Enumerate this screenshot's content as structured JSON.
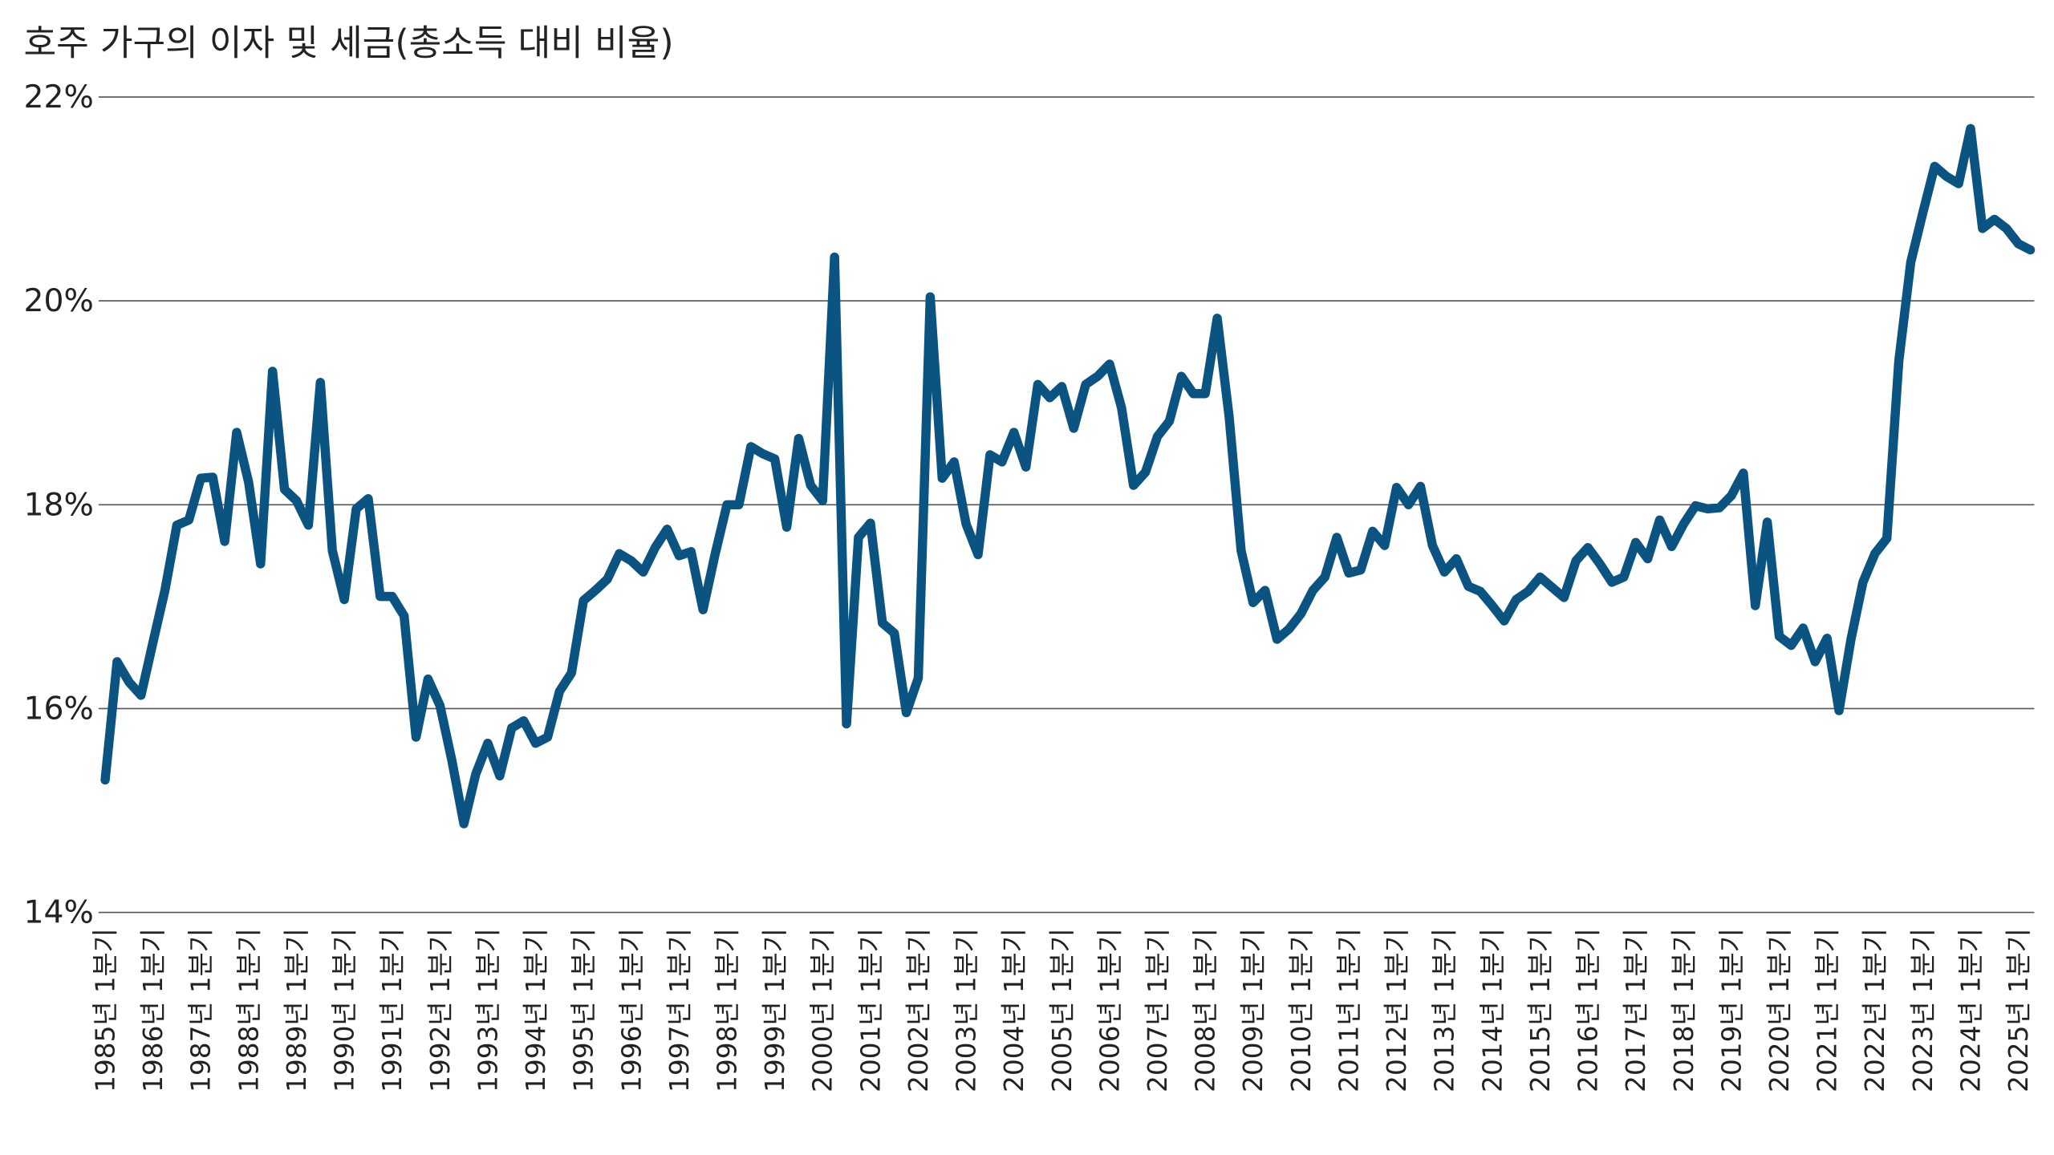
{
  "chart_data": {
    "type": "line",
    "title": "호주 가구의 이자 및 세금(총소득 대비 비율)",
    "categories": [
      "1985년 1분기",
      null,
      null,
      null,
      "1986년 1분기",
      null,
      null,
      null,
      "1987년 1분기",
      null,
      null,
      null,
      "1988년 1분기",
      null,
      null,
      null,
      "1989년 1분기",
      null,
      null,
      null,
      "1990년 1분기",
      null,
      null,
      null,
      "1991년 1분기",
      null,
      null,
      null,
      "1992년 1분기",
      null,
      null,
      null,
      "1993년 1분기",
      null,
      null,
      null,
      "1994년 1분기",
      null,
      null,
      null,
      "1995년 1분기",
      null,
      null,
      null,
      "1996년 1분기",
      null,
      null,
      null,
      "1997년 1분기",
      null,
      null,
      null,
      "1998년 1분기",
      null,
      null,
      null,
      "1999년 1분기",
      null,
      null,
      null,
      "2000년 1분기",
      null,
      null,
      null,
      "2001년 1분기",
      null,
      null,
      null,
      "2002년 1분기",
      null,
      null,
      null,
      "2003년 1분기",
      null,
      null,
      null,
      "2004년 1분기",
      null,
      null,
      null,
      "2005년 1분기",
      null,
      null,
      null,
      "2006년 1분기",
      null,
      null,
      null,
      "2007년 1분기",
      null,
      null,
      null,
      "2008년 1분기",
      null,
      null,
      null,
      "2009년 1분기",
      null,
      null,
      null,
      "2010년 1분기",
      null,
      null,
      null,
      "2011년 1분기",
      null,
      null,
      null,
      "2012년 1분기",
      null,
      null,
      null,
      "2013년 1분기",
      null,
      null,
      null,
      "2014년 1분기",
      null,
      null,
      null,
      "2015년 1분기",
      null,
      null,
      null,
      "2016년 1분기",
      null,
      null,
      null,
      "2017년 1분기",
      null,
      null,
      null,
      "2018년 1분기",
      null,
      null,
      null,
      "2019년 1분기",
      null,
      null,
      null,
      "2020년 1분기",
      null,
      null,
      null,
      "2021년 1분기",
      null,
      null,
      null,
      "2022년 1분기",
      null,
      null,
      null,
      "2023년 1분기",
      null,
      null,
      null,
      "2024년 1분기",
      null,
      null,
      null,
      "2025년 1분기",
      null
    ],
    "values": [
      15.3,
      16.46,
      16.26,
      16.13,
      16.65,
      17.16,
      17.8,
      17.85,
      18.26,
      18.27,
      17.64,
      18.71,
      18.22,
      17.42,
      19.31,
      18.15,
      18.04,
      17.8,
      19.2,
      17.55,
      17.07,
      17.96,
      18.06,
      17.1,
      17.1,
      16.91,
      15.72,
      16.29,
      16.03,
      15.49,
      14.87,
      15.36,
      15.66,
      15.34,
      15.81,
      15.88,
      15.66,
      15.72,
      16.17,
      16.35,
      17.06,
      17.16,
      17.27,
      17.52,
      17.45,
      17.34,
      17.58,
      17.76,
      17.5,
      17.54,
      16.97,
      17.51,
      18.0,
      18.0,
      18.57,
      18.5,
      18.45,
      17.78,
      18.65,
      18.19,
      18.04,
      20.43,
      15.85,
      17.68,
      17.82,
      16.84,
      16.74,
      15.96,
      16.3,
      20.04,
      18.26,
      18.42,
      17.81,
      17.51,
      18.49,
      18.42,
      18.71,
      18.37,
      19.18,
      19.05,
      19.16,
      18.75,
      19.18,
      19.26,
      19.38,
      18.95,
      18.19,
      18.32,
      18.67,
      18.82,
      19.26,
      19.09,
      19.09,
      19.83,
      18.86,
      17.55,
      17.04,
      17.16,
      16.68,
      16.78,
      16.93,
      17.16,
      17.29,
      17.68,
      17.33,
      17.36,
      17.74,
      17.6,
      18.17,
      18.0,
      18.18,
      17.6,
      17.34,
      17.47,
      17.2,
      17.15,
      17.01,
      16.86,
      17.07,
      17.15,
      17.29,
      17.19,
      17.09,
      17.45,
      17.58,
      17.42,
      17.24,
      17.29,
      17.63,
      17.47,
      17.85,
      17.59,
      17.81,
      17.99,
      17.96,
      17.97,
      18.09,
      18.31,
      17.01,
      17.83,
      16.71,
      16.62,
      16.79,
      16.46,
      16.69,
      15.98,
      16.68,
      17.24,
      17.52,
      17.67,
      19.41,
      20.38,
      20.86,
      21.32,
      21.22,
      21.15,
      21.69,
      20.71,
      20.8,
      20.71,
      20.56,
      20.5
    ],
    "color": "#0b5482",
    "ylim": [
      14,
      22
    ],
    "yticks": [
      {
        "value": 14,
        "label": "14%"
      },
      {
        "value": 16,
        "label": "16%"
      },
      {
        "value": 18,
        "label": "18%"
      },
      {
        "value": 20,
        "label": "20%"
      },
      {
        "value": 22,
        "label": "22%"
      }
    ],
    "grid": true
  }
}
